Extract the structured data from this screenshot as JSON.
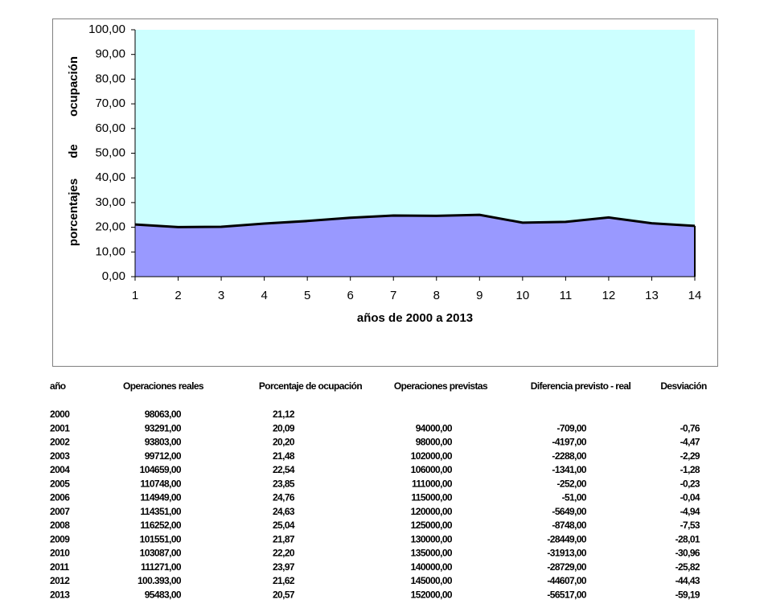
{
  "chart_data": {
    "type": "area",
    "x": [
      1,
      2,
      3,
      4,
      5,
      6,
      7,
      8,
      9,
      10,
      11,
      12,
      13,
      14
    ],
    "values": [
      21.12,
      20.09,
      20.2,
      21.48,
      22.54,
      23.85,
      24.76,
      24.63,
      25.04,
      21.87,
      22.2,
      23.97,
      21.62,
      20.57
    ],
    "color": "#9999ff",
    "line_color": "#000000",
    "plot_background": "#ccffff",
    "xlim": [
      1,
      14
    ],
    "xticks": [
      1,
      2,
      3,
      4,
      5,
      6,
      7,
      8,
      9,
      10,
      11,
      12,
      13,
      14
    ],
    "ylim": [
      0,
      100
    ],
    "yticks": [
      {
        "value": 0,
        "label": "0,00"
      },
      {
        "value": 10,
        "label": "10,00"
      },
      {
        "value": 20,
        "label": "20,00"
      },
      {
        "value": 30,
        "label": "30,00"
      },
      {
        "value": 40,
        "label": "40,00"
      },
      {
        "value": 50,
        "label": "50,00"
      },
      {
        "value": 60,
        "label": "60,00"
      },
      {
        "value": 70,
        "label": "70,00"
      },
      {
        "value": 80,
        "label": "80,00"
      },
      {
        "value": 90,
        "label": "90,00"
      },
      {
        "value": 100,
        "label": "100,00"
      }
    ],
    "x_label": "años de 2000 a 2013",
    "y_label": [
      "porcentajes",
      "de",
      "ocupación"
    ]
  },
  "table": {
    "header": [
      "año",
      "Operaciones reales",
      "Porcentaje de ocupación",
      "Operaciones previstas",
      "Diferencia previsto - real",
      "Desviación"
    ],
    "rows": [
      [
        "2000",
        "98063,00",
        "21,12",
        null,
        null,
        null
      ],
      [
        "2001",
        "93291,00",
        "20,09",
        "94000,00",
        "-709,00",
        "-0,76"
      ],
      [
        "2002",
        "93803,00",
        "20,20",
        "98000,00",
        "-4197,00",
        "-4,47"
      ],
      [
        "2003",
        "99712,00",
        "21,48",
        "102000,00",
        "-2288,00",
        "-2,29"
      ],
      [
        "2004",
        "104659,00",
        "22,54",
        "106000,00",
        "-1341,00",
        "-1,28"
      ],
      [
        "2005",
        "110748,00",
        "23,85",
        "111000,00",
        "-252,00",
        "-0,23"
      ],
      [
        "2006",
        "114949,00",
        "24,76",
        "115000,00",
        "-51,00",
        "-0,04"
      ],
      [
        "2007",
        "114351,00",
        "24,63",
        "120000,00",
        "-5649,00",
        "-4,94"
      ],
      [
        "2008",
        "116252,00",
        "25,04",
        "125000,00",
        "-8748,00",
        "-7,53"
      ],
      [
        "2009",
        "101551,00",
        "21,87",
        "130000,00",
        "-28449,00",
        "-28,01"
      ],
      [
        "2010",
        "103087,00",
        "22,20",
        "135000,00",
        "-31913,00",
        "-30,96"
      ],
      [
        "2011",
        "111271,00",
        "23,97",
        "140000,00",
        "-28729,00",
        "-25,82"
      ],
      [
        "2012",
        "100.393,00",
        "21,62",
        "145000,00",
        "-44607,00",
        "-44,43"
      ],
      [
        "2013",
        "95483,00",
        "20,57",
        "152000,00",
        "-56517,00",
        "-59,19"
      ]
    ]
  }
}
